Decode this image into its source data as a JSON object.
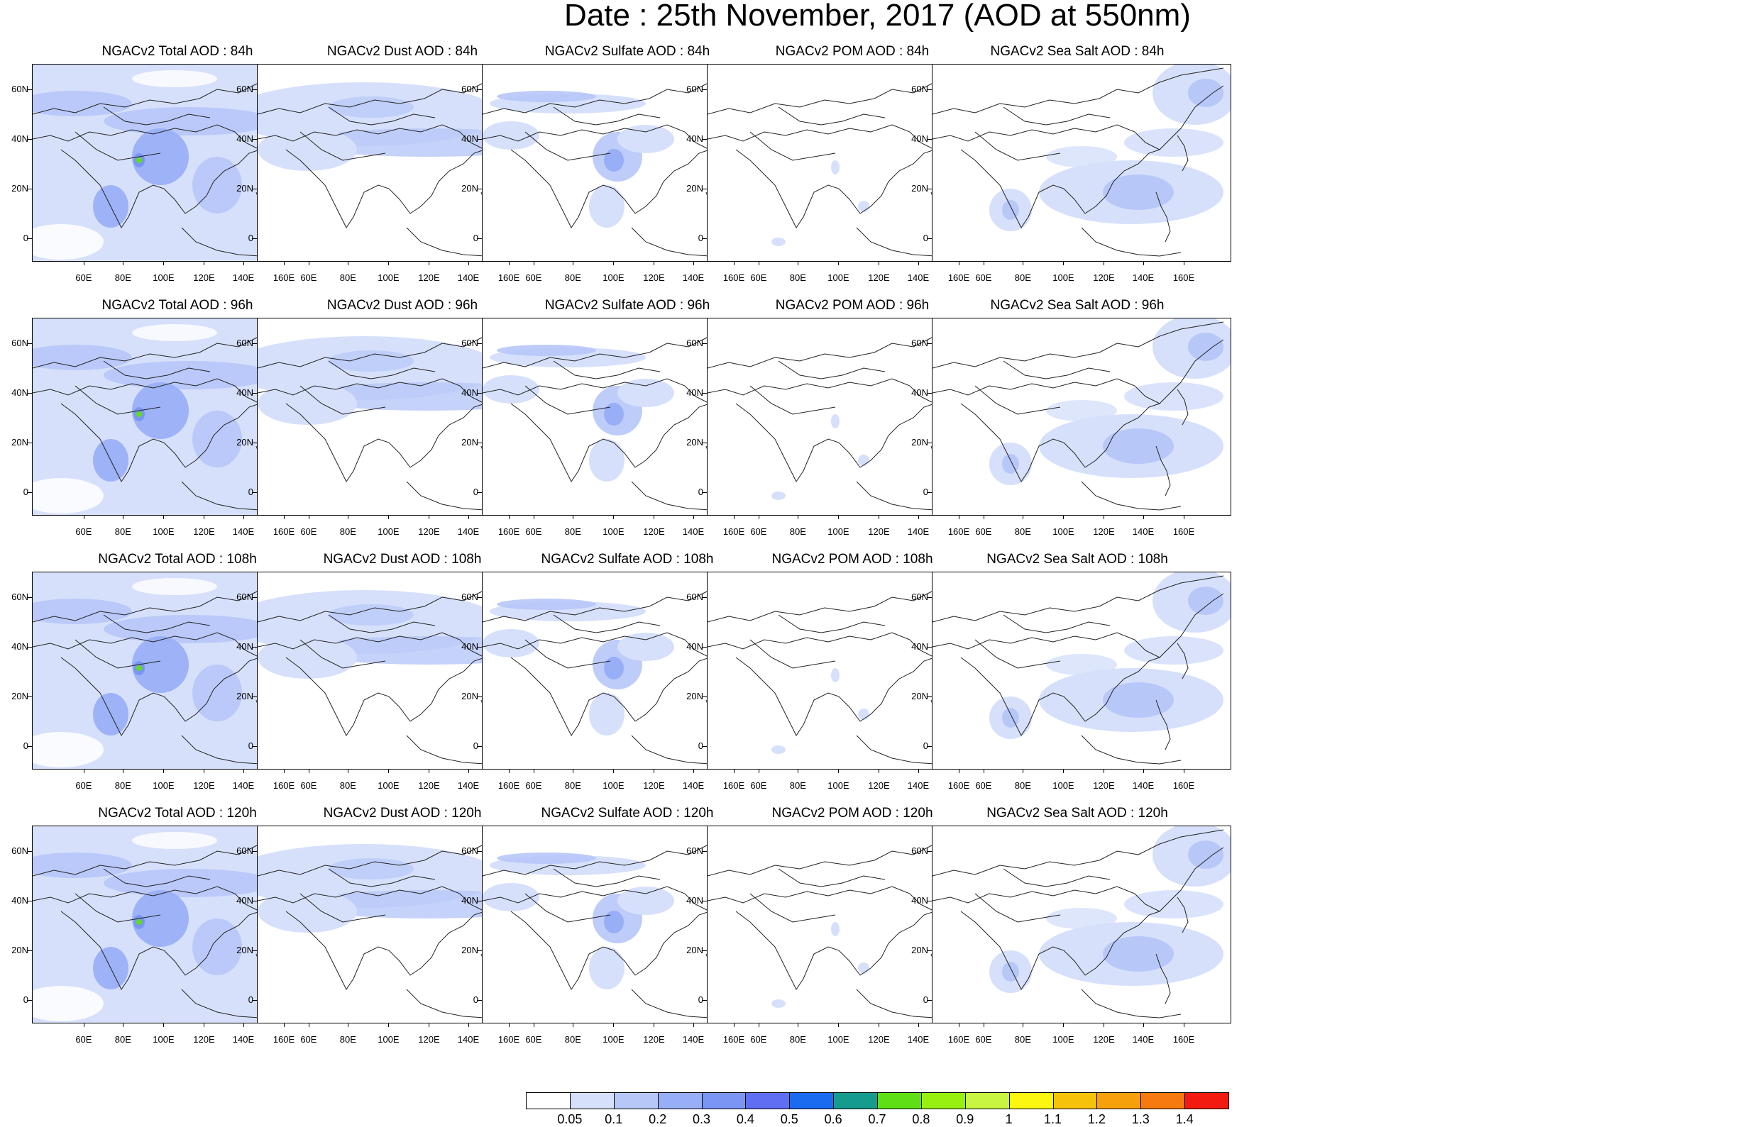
{
  "title": "Date : 25th November, 2017 (AOD at 550nm)",
  "panels": [
    [
      "NGACv2 Total AOD : 84h",
      "NGACv2 Dust AOD : 84h",
      "NGACv2 Sulfate AOD : 84h",
      "NGACv2 POM AOD : 84h",
      "NGACv2 Sea Salt AOD : 84h"
    ],
    [
      "NGACv2 Total AOD : 96h",
      "NGACv2 Dust AOD : 96h",
      "NGACv2 Sulfate AOD : 96h",
      "NGACv2 POM AOD : 96h",
      "NGACv2 Sea Salt AOD : 96h"
    ],
    [
      "NGACv2 Total AOD : 108h",
      "NGACv2 Dust AOD : 108h",
      "NGACv2 Sulfate AOD : 108h",
      "NGACv2 POM AOD : 108h",
      "NGACv2 Sea Salt AOD : 108h"
    ],
    [
      "NGACv2 Total AOD : 120h",
      "NGACv2 Dust AOD : 120h",
      "NGACv2 Sulfate AOD : 120h",
      "NGACv2 POM AOD : 120h",
      "NGACv2 Sea Salt  AOD : 120h"
    ]
  ],
  "y_ticks": [
    "60N",
    "40N",
    "20N",
    "0"
  ],
  "x_ticks": [
    "60E",
    "80E",
    "100E",
    "120E",
    "140E",
    "160E"
  ],
  "colorbar": {
    "labels": [
      "0.05",
      "0.1",
      "0.2",
      "0.3",
      "0.4",
      "0.5",
      "0.6",
      "0.7",
      "0.8",
      "0.9",
      "1",
      "1.1",
      "1.2",
      "1.3",
      "1.4"
    ],
    "colors": [
      "#ffffff",
      "#d6e0fb",
      "#b7c7f8",
      "#98aef6",
      "#7b95f5",
      "#5f6ef3",
      "#1b6bf0",
      "#159c8f",
      "#5fdf15",
      "#97f00f",
      "#c8f442",
      "#fbf710",
      "#f6c30a",
      "#f6a10b",
      "#f77a10",
      "#f31b10"
    ]
  }
}
